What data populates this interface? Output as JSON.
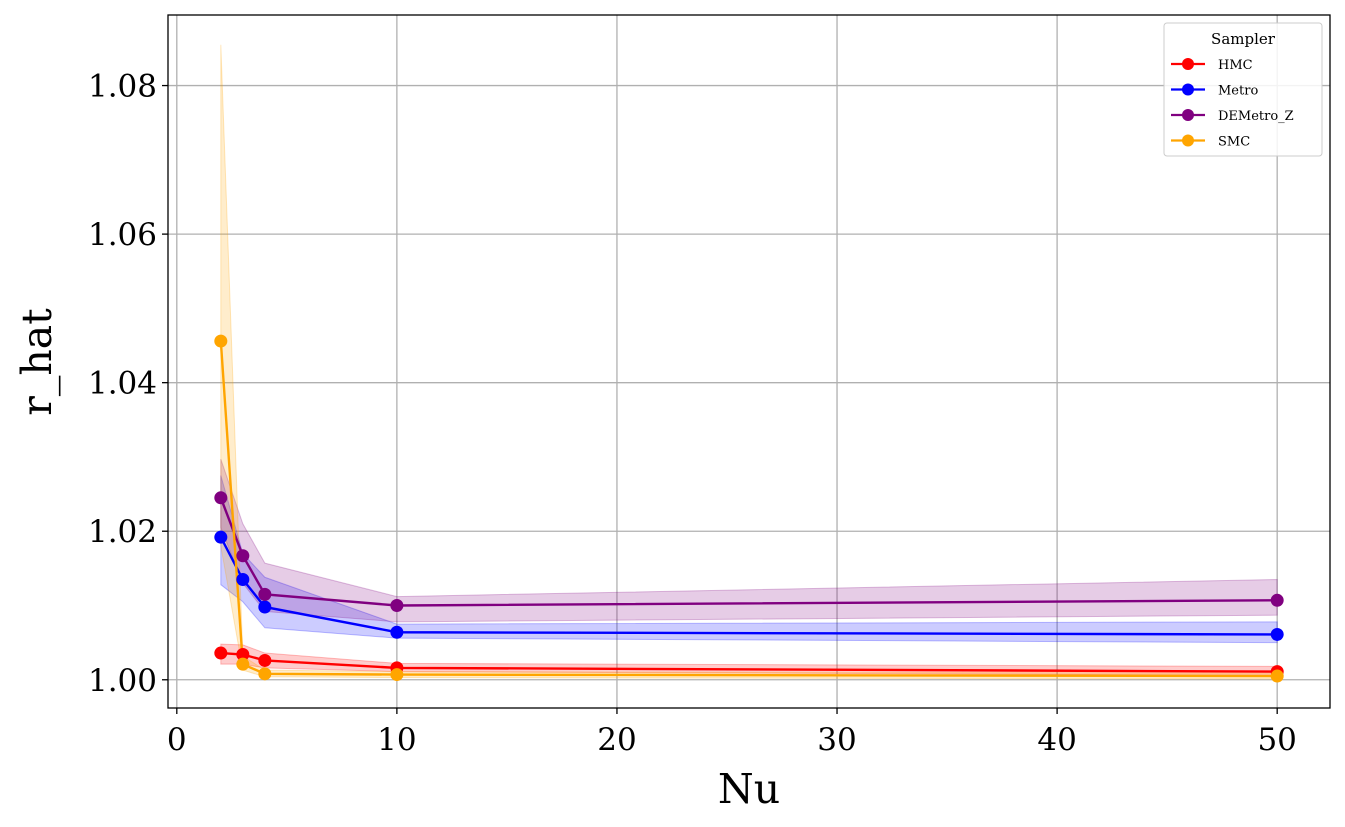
{
  "chart_data": {
    "type": "line",
    "xlabel": "Nu",
    "ylabel": "r_hat",
    "xlim": [
      -0.4,
      52.4
    ],
    "ylim": [
      0.9962,
      1.0895
    ],
    "xticks": [
      0,
      10,
      20,
      30,
      40,
      50
    ],
    "yticks": [
      1.0,
      1.02,
      1.04,
      1.06,
      1.08
    ],
    "ytick_labels": [
      "1.00",
      "1.02",
      "1.04",
      "1.06",
      "1.08"
    ],
    "grid": true,
    "legend": {
      "title": "Sampler",
      "placement": "top-right"
    },
    "x": [
      2,
      3,
      4,
      10,
      50
    ],
    "series": [
      {
        "name": "HMC",
        "color": "#ff0000",
        "values": [
          1.0036,
          1.0034,
          1.0026,
          1.0016,
          1.0011
        ],
        "lower": [
          1.0021,
          1.0021,
          1.0016,
          1.0011,
          1.0006
        ],
        "upper": [
          1.0048,
          1.0047,
          1.0036,
          1.0022,
          1.0018
        ]
      },
      {
        "name": "Metro",
        "color": "#0000ff",
        "values": [
          1.0192,
          1.0135,
          1.0098,
          1.0064,
          1.0061
        ],
        "lower": [
          1.0128,
          1.0105,
          1.007,
          1.0056,
          1.005
        ],
        "upper": [
          1.0275,
          1.017,
          1.0138,
          1.0075,
          1.0078
        ]
      },
      {
        "name": "DEMetro_Z",
        "color": "#800080",
        "values": [
          1.0245,
          1.0167,
          1.0115,
          1.01,
          1.0107
        ],
        "lower": [
          1.0205,
          1.013,
          1.0092,
          1.0078,
          1.0087
        ],
        "upper": [
          1.0297,
          1.021,
          1.0157,
          1.0112,
          1.0135
        ]
      },
      {
        "name": "SMC",
        "color": "#ffa500",
        "values": [
          1.0456,
          1.0021,
          1.0008,
          1.0007,
          1.0005
        ],
        "lower": [
          1.018,
          1.0013,
          1.0004,
          1.0003,
          1.0001
        ],
        "upper": [
          1.0855,
          1.0032,
          1.0013,
          1.0011,
          1.0009
        ]
      }
    ]
  }
}
